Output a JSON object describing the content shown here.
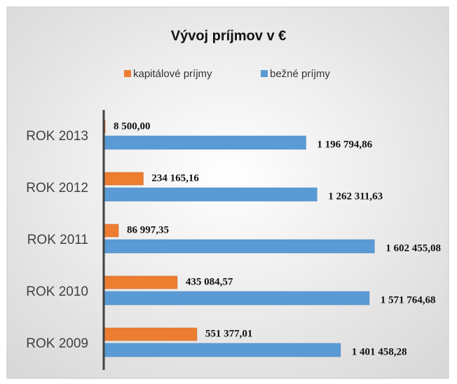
{
  "chart_data": {
    "type": "bar",
    "orientation": "horizontal",
    "title": "Vývoj príjmov v €",
    "categories": [
      "ROK 2013",
      "ROK 2012",
      "ROK 2011",
      "ROK 2010",
      "ROK 2009"
    ],
    "series": [
      {
        "name": "kapitálové príjmy",
        "color": "#ed7d31",
        "values": [
          8500,
          234165.16,
          86997.35,
          435084.57,
          551377.01
        ],
        "value_labels": [
          "8 500,00",
          "234 165,16",
          "86 997,35",
          "435 084,57",
          "551 377,01"
        ]
      },
      {
        "name": "bežné príjmy",
        "color": "#5b9bd5",
        "values": [
          1196794.86,
          1262311.63,
          1602455.08,
          1571764.68,
          1401458.28
        ],
        "value_labels": [
          "1 196 794,86",
          "1 262 311,63",
          "1 602 455,08",
          "1 571 764,68",
          "1 401 458,28"
        ]
      }
    ],
    "xlim": [
      0,
      2000000
    ],
    "legend": "top"
  }
}
